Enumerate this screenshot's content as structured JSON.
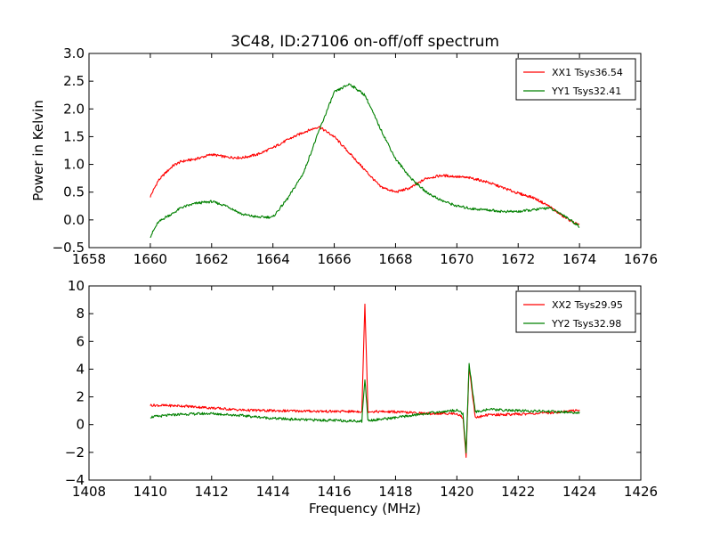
{
  "title": "3C48, ID:27106 on-off/off spectrum",
  "chart_data": [
    {
      "type": "line",
      "title": "3C48, ID:27106 on-off/off spectrum",
      "xlabel": "",
      "ylabel": "Power in Kelvin",
      "xlim": [
        1658,
        1676
      ],
      "ylim": [
        -0.5,
        3.0
      ],
      "xticks": [
        "1658",
        "1660",
        "1662",
        "1664",
        "1666",
        "1668",
        "1670",
        "1672",
        "1674",
        "1676"
      ],
      "yticks": [
        "−0.5",
        "0.0",
        "0.5",
        "1.0",
        "1.5",
        "2.0",
        "2.5",
        "3.0"
      ],
      "grid": false,
      "legend_position": "top-right",
      "series": [
        {
          "name": "XX1 Tsys36.54",
          "color": "#ff0000",
          "x": [
            1660.0,
            1660.25,
            1660.5,
            1660.75,
            1661.0,
            1661.5,
            1662.0,
            1662.5,
            1663.0,
            1663.5,
            1664.0,
            1664.5,
            1665.0,
            1665.5,
            1666.0,
            1666.5,
            1667.0,
            1667.5,
            1668.0,
            1668.5,
            1669.0,
            1669.5,
            1670.0,
            1670.5,
            1671.0,
            1671.5,
            1672.0,
            1672.5,
            1673.0,
            1673.5,
            1674.0
          ],
          "values": [
            0.42,
            0.7,
            0.85,
            0.98,
            1.05,
            1.1,
            1.18,
            1.13,
            1.12,
            1.18,
            1.3,
            1.45,
            1.58,
            1.68,
            1.5,
            1.2,
            0.9,
            0.6,
            0.5,
            0.58,
            0.75,
            0.8,
            0.78,
            0.75,
            0.68,
            0.58,
            0.48,
            0.4,
            0.25,
            0.05,
            -0.1
          ]
        },
        {
          "name": "YY1 Tsys32.41",
          "color": "#008000",
          "x": [
            1660.0,
            1660.25,
            1660.5,
            1660.75,
            1661.0,
            1661.5,
            1662.0,
            1662.5,
            1663.0,
            1663.5,
            1664.0,
            1664.5,
            1665.0,
            1665.5,
            1666.0,
            1666.5,
            1667.0,
            1667.5,
            1668.0,
            1668.5,
            1669.0,
            1669.5,
            1670.0,
            1670.5,
            1671.0,
            1671.5,
            1672.0,
            1672.5,
            1673.0,
            1673.5,
            1674.0
          ],
          "values": [
            -0.3,
            -0.05,
            0.05,
            0.12,
            0.22,
            0.3,
            0.33,
            0.25,
            0.1,
            0.05,
            0.05,
            0.4,
            0.85,
            1.6,
            2.3,
            2.45,
            2.25,
            1.65,
            1.1,
            0.75,
            0.5,
            0.35,
            0.25,
            0.2,
            0.18,
            0.15,
            0.15,
            0.18,
            0.22,
            0.08,
            -0.12
          ]
        }
      ]
    },
    {
      "type": "line",
      "title": "",
      "xlabel": "Frequency (MHz)",
      "ylabel": "",
      "xlim": [
        1408,
        1426
      ],
      "ylim": [
        -4,
        10
      ],
      "xticks": [
        "1408",
        "1410",
        "1412",
        "1414",
        "1416",
        "1418",
        "1420",
        "1422",
        "1424",
        "1426"
      ],
      "yticks": [
        "−4",
        "−2",
        "0",
        "2",
        "4",
        "6",
        "8",
        "10"
      ],
      "grid": false,
      "legend_position": "top-right",
      "series": [
        {
          "name": "XX2 Tsys29.95",
          "color": "#ff0000",
          "x": [
            1410.0,
            1411.0,
            1412.0,
            1413.0,
            1414.0,
            1415.0,
            1416.0,
            1416.9,
            1417.0,
            1417.1,
            1418.0,
            1419.0,
            1420.0,
            1420.2,
            1420.3,
            1420.4,
            1420.6,
            1421.0,
            1422.0,
            1423.0,
            1424.0
          ],
          "values": [
            1.4,
            1.35,
            1.2,
            1.05,
            1.0,
            0.98,
            0.95,
            0.95,
            8.7,
            0.95,
            0.92,
            0.8,
            0.8,
            0.5,
            -2.3,
            4.2,
            0.5,
            0.7,
            0.75,
            0.85,
            1.05
          ]
        },
        {
          "name": "YY2 Tsys32.98",
          "color": "#008000",
          "x": [
            1410.0,
            1411.0,
            1412.0,
            1413.0,
            1414.0,
            1415.0,
            1416.0,
            1416.9,
            1417.0,
            1417.1,
            1418.0,
            1419.0,
            1420.0,
            1420.2,
            1420.3,
            1420.4,
            1420.6,
            1421.0,
            1422.0,
            1423.0,
            1424.0
          ],
          "values": [
            0.55,
            0.75,
            0.8,
            0.65,
            0.45,
            0.35,
            0.3,
            0.25,
            3.3,
            0.3,
            0.5,
            0.8,
            1.05,
            0.8,
            -2.0,
            4.4,
            0.9,
            1.1,
            1.0,
            0.95,
            0.85
          ]
        }
      ]
    }
  ]
}
